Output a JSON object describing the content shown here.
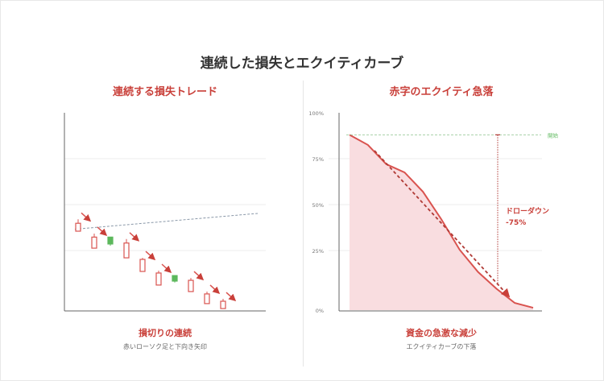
{
  "title": "連続した損失とエクイティカーブ",
  "colors": {
    "loss": "#d9534f",
    "gain": "#5cb85c",
    "title_red": "#c9403a",
    "fill": "#f9dde0",
    "start_line": "#8fc48f"
  },
  "chart_data": [
    {
      "type": "candlestick",
      "title": "連続する損失トレード",
      "caption_title": "損切りの連続",
      "caption_sub": "赤いローソク足と下向き矢印",
      "grid": true,
      "ylim": [
        0,
        100
      ],
      "candles": [
        {
          "open": 44,
          "close": 40,
          "high": 46,
          "low": 40,
          "color": "red",
          "arrow": true
        },
        {
          "open": 37,
          "close": 31.4,
          "high": 38.8,
          "low": 31.4,
          "color": "red",
          "arrow": true
        },
        {
          "open": 33.5,
          "close": 37,
          "high": 37,
          "low": 32.6,
          "color": "green",
          "arrow": false
        },
        {
          "open": 34,
          "close": 26.5,
          "high": 36,
          "low": 26.5,
          "color": "red",
          "arrow": true
        },
        {
          "open": 25.7,
          "close": 19.6,
          "high": 26.5,
          "low": 19.6,
          "color": "red",
          "arrow": true
        },
        {
          "open": 18.8,
          "close": 12.7,
          "high": 20,
          "low": 12.7,
          "color": "red",
          "arrow": true
        },
        {
          "open": 14.7,
          "close": 17.5,
          "high": 17.5,
          "low": 14,
          "color": "green",
          "arrow": false
        },
        {
          "open": 15.1,
          "close": 9.4,
          "high": 16.3,
          "low": 9.4,
          "color": "red",
          "arrow": true
        },
        {
          "open": 8.2,
          "close": 3.3,
          "high": 9.4,
          "low": 3.3,
          "color": "red",
          "arrow": true
        },
        {
          "open": 4.5,
          "close": 0.8,
          "high": 5.7,
          "low": 0.8,
          "color": "red",
          "arrow": true
        }
      ],
      "trend_line": {
        "start": 41,
        "end": 49
      }
    },
    {
      "type": "area",
      "title": "赤字のエクイティ急落",
      "caption_title": "資金の急激な減少",
      "caption_sub": "エクイティカーブの下落",
      "grid": true,
      "ylim": [
        0,
        100
      ],
      "yticks": [
        "0%",
        "25%",
        "50%",
        "75%",
        "100%"
      ],
      "values": [
        88,
        82.5,
        72,
        67.5,
        57,
        42,
        25.4,
        16,
        9,
        3,
        1
      ],
      "start_level": 88,
      "start_label": "開始",
      "drawdown_label": "ドローダウン",
      "drawdown_value": "-75%",
      "drawdown_bottom": 11
    }
  ]
}
